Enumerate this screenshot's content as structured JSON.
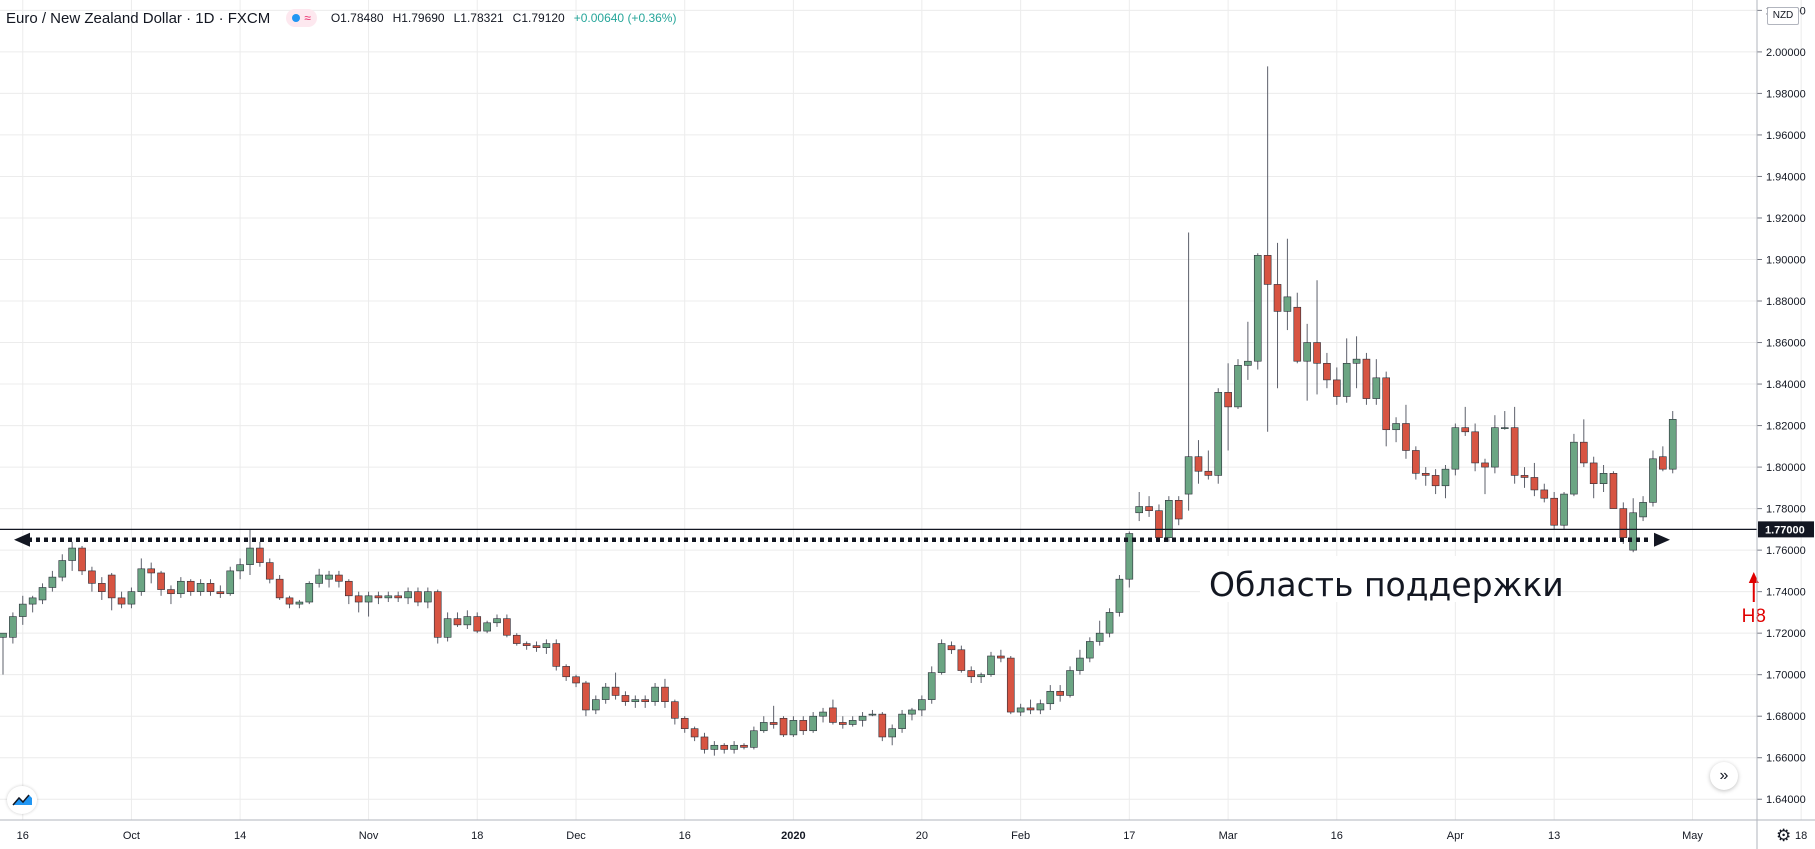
{
  "header": {
    "title": "Euro / New Zealand Dollar · 1D · FXCM",
    "open": "O1.78480",
    "high": "H1.79690",
    "low": "L1.78321",
    "close": "C1.79120",
    "change": "+0.00640 (+0.36%)"
  },
  "currency_badge": "NZD",
  "price_marker": "1.77000",
  "annotation_text": "Область поддержки",
  "annotation_marker": "H8",
  "icons": {
    "toggle": "visibility-toggle-icon",
    "fast_forward": "scroll-to-latest-icon",
    "logo": "tradingview-logo-icon",
    "settings": "gear-icon"
  },
  "colors": {
    "up": "#6ba583",
    "down": "#d75442",
    "line": "#131722",
    "marker": "#e00000",
    "grid": "#ececec"
  },
  "chart_data": {
    "type": "candlestick",
    "instrument": "EUR/NZD",
    "interval": "1D",
    "ylim": [
      1.63,
      2.025
    ],
    "yticks": [
      1.64,
      1.66,
      1.68,
      1.7,
      1.72,
      1.74,
      1.76,
      1.78,
      1.8,
      1.82,
      1.84,
      1.86,
      1.88,
      1.9,
      1.92,
      1.94,
      1.96,
      1.98,
      2.0,
      2.02
    ],
    "ytick_labels": [
      "1.64000",
      "1.66000",
      "1.68000",
      "1.70000",
      "1.72000",
      "1.74000",
      "1.76000",
      "1.78000",
      "1.80000",
      "1.82000",
      "1.84000",
      "1.86000",
      "1.88000",
      "1.90000",
      "1.92000",
      "1.94000",
      "1.96000",
      "1.98000",
      "2.00000",
      "2.02000"
    ],
    "xticks": [
      {
        "index": 2,
        "label": "16"
      },
      {
        "index": 13,
        "label": "Oct"
      },
      {
        "index": 24,
        "label": "14"
      },
      {
        "index": 37,
        "label": "Nov"
      },
      {
        "index": 48,
        "label": "18"
      },
      {
        "index": 58,
        "label": "Dec"
      },
      {
        "index": 69,
        "label": "16"
      },
      {
        "index": 80,
        "label": "2020"
      },
      {
        "index": 93,
        "label": "20"
      },
      {
        "index": 103,
        "label": "Feb"
      },
      {
        "index": 114,
        "label": "17"
      },
      {
        "index": 124,
        "label": "Mar"
      },
      {
        "index": 135,
        "label": "16"
      },
      {
        "index": 147,
        "label": "Apr"
      },
      {
        "index": 157,
        "label": "13"
      },
      {
        "index": 171,
        "label": "May"
      },
      {
        "index": 182,
        "label": "18"
      }
    ],
    "support_level": 1.77,
    "support_band": 1.765,
    "h8_index": 177,
    "candles": [
      [
        1.718,
        1.72,
        1.7,
        1.72
      ],
      [
        1.718,
        1.73,
        1.715,
        1.728
      ],
      [
        1.728,
        1.738,
        1.724,
        1.734
      ],
      [
        1.734,
        1.738,
        1.73,
        1.737
      ],
      [
        1.736,
        1.744,
        1.734,
        1.742
      ],
      [
        1.742,
        1.75,
        1.74,
        1.747
      ],
      [
        1.747,
        1.758,
        1.745,
        1.755
      ],
      [
        1.755,
        1.764,
        1.75,
        1.761
      ],
      [
        1.761,
        1.762,
        1.748,
        1.75
      ],
      [
        1.75,
        1.752,
        1.74,
        1.744
      ],
      [
        1.744,
        1.747,
        1.736,
        1.74
      ],
      [
        1.748,
        1.749,
        1.731,
        1.737
      ],
      [
        1.737,
        1.74,
        1.732,
        1.734
      ],
      [
        1.734,
        1.742,
        1.732,
        1.74
      ],
      [
        1.74,
        1.756,
        1.738,
        1.751
      ],
      [
        1.751,
        1.754,
        1.744,
        1.749
      ],
      [
        1.749,
        1.75,
        1.738,
        1.741
      ],
      [
        1.741,
        1.743,
        1.734,
        1.739
      ],
      [
        1.739,
        1.747,
        1.737,
        1.745
      ],
      [
        1.745,
        1.746,
        1.738,
        1.74
      ],
      [
        1.74,
        1.746,
        1.738,
        1.744
      ],
      [
        1.744,
        1.746,
        1.738,
        1.74
      ],
      [
        1.74,
        1.743,
        1.737,
        1.739
      ],
      [
        1.739,
        1.752,
        1.738,
        1.75
      ],
      [
        1.75,
        1.756,
        1.746,
        1.753
      ],
      [
        1.753,
        1.77,
        1.748,
        1.761
      ],
      [
        1.761,
        1.764,
        1.752,
        1.754
      ],
      [
        1.754,
        1.756,
        1.744,
        1.746
      ],
      [
        1.746,
        1.748,
        1.736,
        1.737
      ],
      [
        1.737,
        1.738,
        1.732,
        1.734
      ],
      [
        1.734,
        1.736,
        1.732,
        1.735
      ],
      [
        1.735,
        1.745,
        1.734,
        1.744
      ],
      [
        1.744,
        1.751,
        1.742,
        1.748
      ],
      [
        1.746,
        1.75,
        1.742,
        1.748
      ],
      [
        1.748,
        1.75,
        1.742,
        1.745
      ],
      [
        1.745,
        1.746,
        1.734,
        1.738
      ],
      [
        1.738,
        1.74,
        1.73,
        1.735
      ],
      [
        1.735,
        1.74,
        1.728,
        1.738
      ],
      [
        1.738,
        1.74,
        1.734,
        1.737
      ],
      [
        1.737,
        1.74,
        1.735,
        1.738
      ],
      [
        1.738,
        1.74,
        1.735,
        1.737
      ],
      [
        1.737,
        1.742,
        1.734,
        1.74
      ],
      [
        1.74,
        1.742,
        1.733,
        1.735
      ],
      [
        1.735,
        1.742,
        1.732,
        1.74
      ],
      [
        1.74,
        1.741,
        1.715,
        1.718
      ],
      [
        1.718,
        1.73,
        1.716,
        1.727
      ],
      [
        1.727,
        1.73,
        1.723,
        1.724
      ],
      [
        1.724,
        1.731,
        1.722,
        1.728
      ],
      [
        1.728,
        1.73,
        1.72,
        1.721
      ],
      [
        1.721,
        1.726,
        1.72,
        1.725
      ],
      [
        1.725,
        1.729,
        1.723,
        1.727
      ],
      [
        1.727,
        1.729,
        1.718,
        1.719
      ],
      [
        1.719,
        1.72,
        1.714,
        1.715
      ],
      [
        1.715,
        1.716,
        1.712,
        1.714
      ],
      [
        1.714,
        1.716,
        1.711,
        1.713
      ],
      [
        1.713,
        1.717,
        1.71,
        1.715
      ],
      [
        1.715,
        1.717,
        1.702,
        1.704
      ],
      [
        1.704,
        1.705,
        1.697,
        1.699
      ],
      [
        1.699,
        1.7,
        1.694,
        1.696
      ],
      [
        1.696,
        1.697,
        1.68,
        1.683
      ],
      [
        1.683,
        1.69,
        1.681,
        1.688
      ],
      [
        1.688,
        1.696,
        1.686,
        1.694
      ],
      [
        1.694,
        1.701,
        1.688,
        1.69
      ],
      [
        1.69,
        1.692,
        1.685,
        1.687
      ],
      [
        1.687,
        1.69,
        1.684,
        1.688
      ],
      [
        1.688,
        1.69,
        1.684,
        1.687
      ],
      [
        1.687,
        1.696,
        1.685,
        1.694
      ],
      [
        1.694,
        1.698,
        1.684,
        1.687
      ],
      [
        1.687,
        1.688,
        1.676,
        1.679
      ],
      [
        1.679,
        1.68,
        1.672,
        1.674
      ],
      [
        1.674,
        1.675,
        1.668,
        1.67
      ],
      [
        1.67,
        1.672,
        1.662,
        1.664
      ],
      [
        1.664,
        1.668,
        1.661,
        1.666
      ],
      [
        1.666,
        1.667,
        1.662,
        1.664
      ],
      [
        1.664,
        1.668,
        1.662,
        1.666
      ],
      [
        1.666,
        1.667,
        1.664,
        1.665
      ],
      [
        1.665,
        1.675,
        1.664,
        1.673
      ],
      [
        1.673,
        1.68,
        1.672,
        1.677
      ],
      [
        1.677,
        1.685,
        1.674,
        1.676
      ],
      [
        1.679,
        1.68,
        1.67,
        1.671
      ],
      [
        1.671,
        1.68,
        1.67,
        1.678
      ],
      [
        1.678,
        1.68,
        1.671,
        1.673
      ],
      [
        1.673,
        1.682,
        1.672,
        1.68
      ],
      [
        1.68,
        1.684,
        1.677,
        1.682
      ],
      [
        1.684,
        1.688,
        1.676,
        1.677
      ],
      [
        1.677,
        1.68,
        1.674,
        1.676
      ],
      [
        1.676,
        1.68,
        1.675,
        1.678
      ],
      [
        1.678,
        1.682,
        1.675,
        1.68
      ],
      [
        1.681,
        1.683,
        1.68,
        1.681
      ],
      [
        1.681,
        1.682,
        1.668,
        1.67
      ],
      [
        1.67,
        1.676,
        1.666,
        1.674
      ],
      [
        1.674,
        1.683,
        1.672,
        1.681
      ],
      [
        1.681,
        1.684,
        1.678,
        1.683
      ],
      [
        1.683,
        1.69,
        1.68,
        1.688
      ],
      [
        1.688,
        1.704,
        1.686,
        1.701
      ],
      [
        1.701,
        1.717,
        1.7,
        1.715
      ],
      [
        1.714,
        1.716,
        1.71,
        1.712
      ],
      [
        1.712,
        1.714,
        1.701,
        1.702
      ],
      [
        1.702,
        1.704,
        1.696,
        1.699
      ],
      [
        1.699,
        1.701,
        1.696,
        1.7
      ],
      [
        1.7,
        1.711,
        1.699,
        1.709
      ],
      [
        1.709,
        1.712,
        1.706,
        1.708
      ],
      [
        1.708,
        1.709,
        1.681,
        1.682
      ],
      [
        1.682,
        1.686,
        1.68,
        1.684
      ],
      [
        1.684,
        1.688,
        1.681,
        1.683
      ],
      [
        1.683,
        1.688,
        1.681,
        1.686
      ],
      [
        1.686,
        1.695,
        1.683,
        1.692
      ],
      [
        1.692,
        1.695,
        1.687,
        1.69
      ],
      [
        1.69,
        1.704,
        1.689,
        1.702
      ],
      [
        1.702,
        1.712,
        1.7,
        1.708
      ],
      [
        1.708,
        1.718,
        1.706,
        1.716
      ],
      [
        1.716,
        1.726,
        1.714,
        1.72
      ],
      [
        1.72,
        1.732,
        1.718,
        1.73
      ],
      [
        1.73,
        1.748,
        1.728,
        1.746
      ],
      [
        1.746,
        1.769,
        1.742,
        1.768
      ],
      [
        1.778,
        1.788,
        1.774,
        1.781
      ],
      [
        1.781,
        1.786,
        1.776,
        1.779
      ],
      [
        1.779,
        1.782,
        1.765,
        1.766
      ],
      [
        1.766,
        1.786,
        1.764,
        1.784
      ],
      [
        1.784,
        1.786,
        1.772,
        1.775
      ],
      [
        1.787,
        1.913,
        1.779,
        1.805
      ],
      [
        1.805,
        1.813,
        1.792,
        1.798
      ],
      [
        1.798,
        1.808,
        1.794,
        1.796
      ],
      [
        1.796,
        1.838,
        1.792,
        1.836
      ],
      [
        1.836,
        1.85,
        1.808,
        1.829
      ],
      [
        1.829,
        1.852,
        1.828,
        1.849
      ],
      [
        1.849,
        1.87,
        1.842,
        1.851
      ],
      [
        1.851,
        1.903,
        1.847,
        1.902
      ],
      [
        1.902,
        1.993,
        1.817,
        1.888
      ],
      [
        1.888,
        1.908,
        1.838,
        1.875
      ],
      [
        1.875,
        1.91,
        1.866,
        1.882
      ],
      [
        1.877,
        1.884,
        1.85,
        1.851
      ],
      [
        1.851,
        1.869,
        1.832,
        1.86
      ],
      [
        1.86,
        1.89,
        1.835,
        1.85
      ],
      [
        1.85,
        1.855,
        1.838,
        1.842
      ],
      [
        1.842,
        1.848,
        1.83,
        1.834
      ],
      [
        1.834,
        1.862,
        1.831,
        1.85
      ],
      [
        1.85,
        1.863,
        1.838,
        1.852
      ],
      [
        1.852,
        1.855,
        1.83,
        1.833
      ],
      [
        1.833,
        1.852,
        1.83,
        1.843
      ],
      [
        1.843,
        1.846,
        1.81,
        1.818
      ],
      [
        1.818,
        1.824,
        1.812,
        1.821
      ],
      [
        1.821,
        1.83,
        1.804,
        1.808
      ],
      [
        1.808,
        1.81,
        1.794,
        1.797
      ],
      [
        1.797,
        1.8,
        1.791,
        1.796
      ],
      [
        1.796,
        1.799,
        1.787,
        1.791
      ],
      [
        1.791,
        1.801,
        1.785,
        1.799
      ],
      [
        1.799,
        1.821,
        1.796,
        1.819
      ],
      [
        1.819,
        1.829,
        1.815,
        1.817
      ],
      [
        1.817,
        1.821,
        1.798,
        1.802
      ],
      [
        1.802,
        1.804,
        1.787,
        1.8
      ],
      [
        1.8,
        1.825,
        1.797,
        1.819
      ],
      [
        1.819,
        1.827,
        1.818,
        1.819
      ],
      [
        1.819,
        1.829,
        1.792,
        1.796
      ],
      [
        1.796,
        1.8,
        1.79,
        1.795
      ],
      [
        1.795,
        1.802,
        1.786,
        1.789
      ],
      [
        1.789,
        1.792,
        1.783,
        1.785
      ],
      [
        1.785,
        1.788,
        1.77,
        1.772
      ],
      [
        1.772,
        1.788,
        1.77,
        1.787
      ],
      [
        1.787,
        1.816,
        1.786,
        1.812
      ],
      [
        1.812,
        1.823,
        1.8,
        1.802
      ],
      [
        1.802,
        1.805,
        1.785,
        1.792
      ],
      [
        1.792,
        1.801,
        1.788,
        1.797
      ],
      [
        1.797,
        1.798,
        1.78,
        1.78
      ],
      [
        1.78,
        1.783,
        1.763,
        1.766
      ],
      [
        1.76,
        1.785,
        1.759,
        1.778
      ],
      [
        1.776,
        1.786,
        1.774,
        1.783
      ],
      [
        1.783,
        1.808,
        1.781,
        1.804
      ],
      [
        1.805,
        1.81,
        1.798,
        1.799
      ],
      [
        1.799,
        1.827,
        1.797,
        1.823
      ]
    ]
  }
}
